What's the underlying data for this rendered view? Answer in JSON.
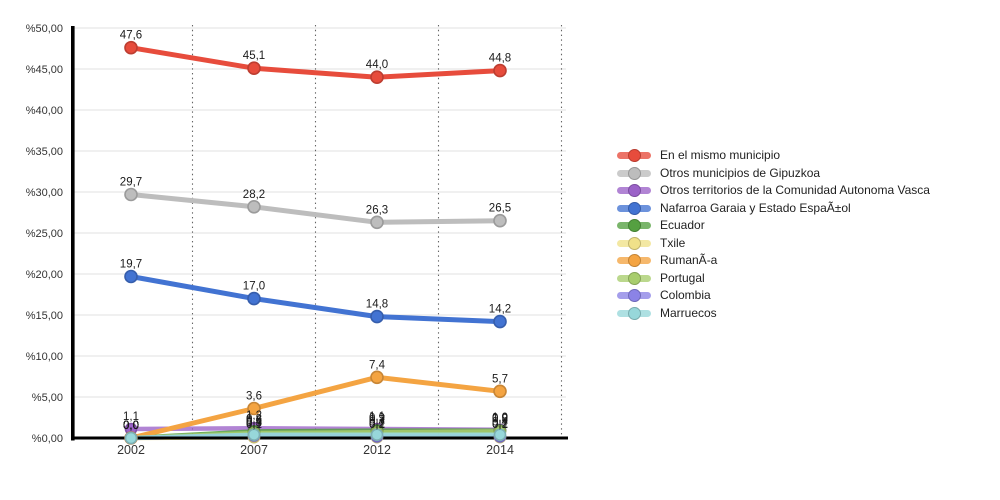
{
  "page": {
    "background": "#ffffff",
    "title": ""
  },
  "chart_data": {
    "type": "line",
    "categories": [
      "2002",
      "2007",
      "2012",
      "2014"
    ],
    "xlabel": "",
    "ylabel": "",
    "ylim": [
      0,
      50
    ],
    "y_tick_step": 5,
    "y_tick_labels": [
      "%50,00",
      "%45,00",
      "%40,00",
      "%35,00",
      "%30,00",
      "%25,00",
      "%20,00",
      "%15,00",
      "%10,00",
      "%5,00",
      "%0,00"
    ],
    "grid": {
      "horizontal": true,
      "vertical_dotted_between_categories": true
    },
    "legend_position": "right",
    "series": [
      {
        "name": "En el mismo municipio",
        "color": "#e74c3c",
        "line_opacity": 1,
        "values": [
          47.6,
          45.1,
          44.0,
          44.8
        ],
        "labels": [
          "47,6",
          "45,1",
          "44,0",
          "44,8"
        ]
      },
      {
        "name": "Otros municipios de Gipuzkoa",
        "color": "#bdbdbd",
        "line_opacity": 1,
        "values": [
          29.7,
          28.2,
          26.3,
          26.5
        ],
        "labels": [
          "29,7",
          "28,2",
          "26,3",
          "26,5"
        ]
      },
      {
        "name": "Otros territorios de la Comunidad Autonoma Vasca",
        "color": "#9b62c8",
        "line_opacity": 0.78,
        "values": [
          1.1,
          1.2,
          1.1,
          1.0
        ],
        "labels": [
          "1,1",
          "1,2",
          "1,1",
          "1,0"
        ]
      },
      {
        "name": "Nafarroa Garaia y Estado EspaÃ±ol",
        "color": "#4273d2",
        "line_opacity": 1,
        "values": [
          19.7,
          17.0,
          14.8,
          14.2
        ],
        "labels": [
          "19,7",
          "17,0",
          "14,8",
          "14,2"
        ]
      },
      {
        "name": "Ecuador",
        "color": "#55a041",
        "line_opacity": 0.85,
        "values": [
          0.0,
          0.8,
          0.9,
          0.9
        ],
        "labels": [
          "0,0",
          "0,8",
          "0,9",
          "0,9"
        ]
      },
      {
        "name": "Txile",
        "color": "#f0e189",
        "line_opacity": 0.9,
        "values": [
          0.0,
          0.1,
          0.1,
          0.1
        ],
        "labels": [
          "0,0",
          "0,1",
          "0,1",
          "0,1"
        ]
      },
      {
        "name": "RumanÃ-a",
        "color": "#f4a442",
        "line_opacity": 1,
        "values": [
          0.0,
          3.6,
          7.4,
          5.7
        ],
        "labels": [
          "0,0",
          "3,6",
          "7,4",
          "5,7"
        ]
      },
      {
        "name": "Portugal",
        "color": "#a8cd6d",
        "line_opacity": 0.85,
        "values": [
          0.0,
          0.6,
          0.7,
          0.8
        ],
        "labels": [
          "0,0",
          "0,6",
          "0,7",
          "0,8"
        ]
      },
      {
        "name": "Colombia",
        "color": "#8b83e6",
        "line_opacity": 0.85,
        "values": [
          0.0,
          0.3,
          0.2,
          0.2
        ],
        "labels": [
          "0,0",
          "0,3",
          "0,2",
          "0,2"
        ]
      },
      {
        "name": "Marruecos",
        "color": "#97d7da",
        "line_opacity": 0.9,
        "values": [
          0.0,
          0.4,
          0.4,
          0.4
        ],
        "labels": [
          "0,0",
          "0,4",
          "0,4",
          "0,4"
        ]
      }
    ],
    "colors": {
      "grid_line": "#e2e2e2",
      "separator_dotted": "#4a4a4a",
      "axis": "#000000",
      "tick_text": "#333333",
      "data_label_text": "#1a1a1a"
    }
  }
}
